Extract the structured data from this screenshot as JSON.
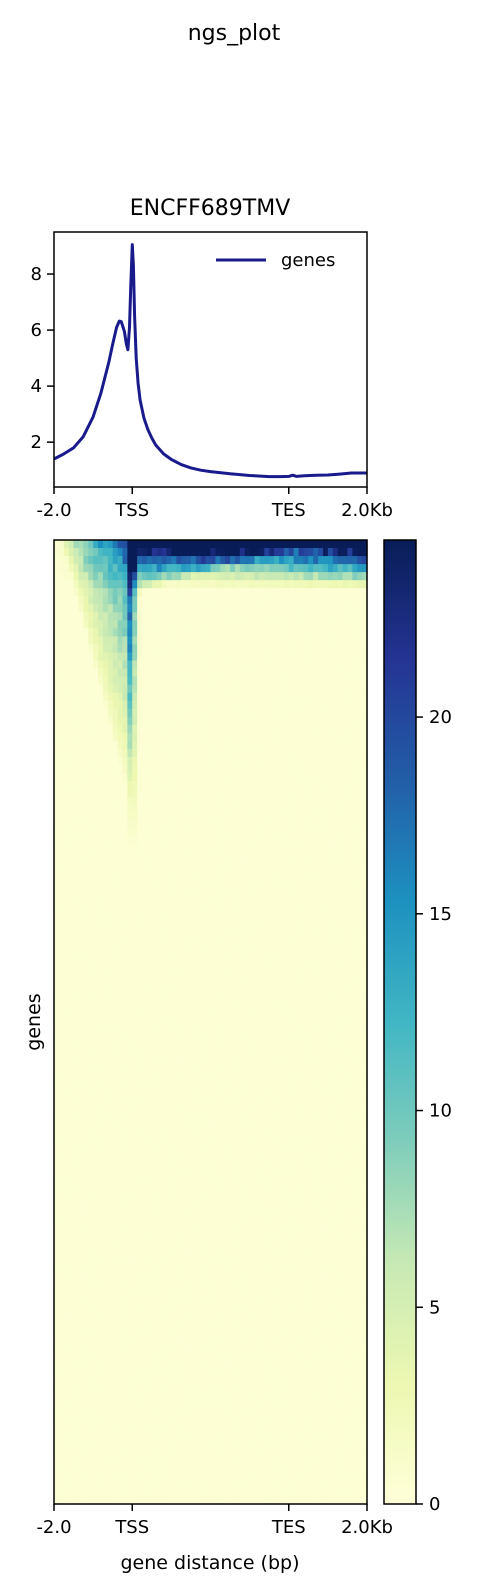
{
  "figure": {
    "suptitle": "ngs_plot"
  },
  "chart_data": [
    {
      "type": "line",
      "title": "ENCFF689TMV",
      "xlabel": "",
      "ylabel": "",
      "x_ticks": [
        {
          "value": -2000,
          "label": "-2.0"
        },
        {
          "value": 0,
          "label": "TSS"
        },
        {
          "value": 4000,
          "label": "TES"
        },
        {
          "value": 6000,
          "label": "2.0Kb"
        }
      ],
      "y_ticks": [
        2,
        4,
        6,
        8
      ],
      "xlim": [
        -2000,
        6000
      ],
      "ylim": [
        0.4,
        9.5
      ],
      "legend": {
        "placement": "upper-right",
        "color": "#191a8c"
      },
      "series": [
        {
          "name": "genes",
          "color": "#191a8c",
          "x": [
            -2000,
            -1750,
            -1500,
            -1250,
            -1000,
            -800,
            -600,
            -500,
            -400,
            -330,
            -280,
            -200,
            -150,
            -110,
            -70,
            -40,
            0,
            30,
            60,
            100,
            150,
            200,
            300,
            400,
            500,
            600,
            800,
            1000,
            1250,
            1500,
            1750,
            2000,
            2500,
            3000,
            3500,
            3800,
            4000,
            4100,
            4200,
            4400,
            4700,
            5000,
            5300,
            5600,
            6000
          ],
          "values": [
            1.4,
            1.58,
            1.8,
            2.2,
            2.9,
            3.75,
            4.85,
            5.5,
            6.1,
            6.32,
            6.3,
            5.95,
            5.5,
            5.3,
            6.1,
            7.5,
            9.05,
            8.3,
            6.5,
            5.0,
            4.1,
            3.5,
            2.85,
            2.45,
            2.15,
            1.9,
            1.58,
            1.38,
            1.2,
            1.08,
            1.0,
            0.95,
            0.87,
            0.81,
            0.77,
            0.77,
            0.78,
            0.82,
            0.78,
            0.8,
            0.82,
            0.83,
            0.86,
            0.9,
            0.9
          ]
        }
      ]
    },
    {
      "type": "heatmap",
      "xlabel": "gene distance (bp)",
      "ylabel": "genes",
      "x_ticks": [
        {
          "value": -2000,
          "label": "-2.0"
        },
        {
          "value": 0,
          "label": "TSS"
        },
        {
          "value": 4000,
          "label": "TES"
        },
        {
          "value": 6000,
          "label": "2.0Kb"
        }
      ],
      "xlim": [
        -2000,
        6000
      ],
      "rows_sorted": "descending by signal",
      "colormap": "YlGnBu",
      "colorbar": {
        "range": [
          0,
          24.5
        ],
        "ticks": [
          0,
          5,
          10,
          15,
          20
        ],
        "stops": [
          "#ffffd9",
          "#edf8b1",
          "#c7e9b4",
          "#7fcdbb",
          "#41b6c4",
          "#1d91c0",
          "#225ea8",
          "#253494",
          "#081d58"
        ]
      }
    }
  ]
}
